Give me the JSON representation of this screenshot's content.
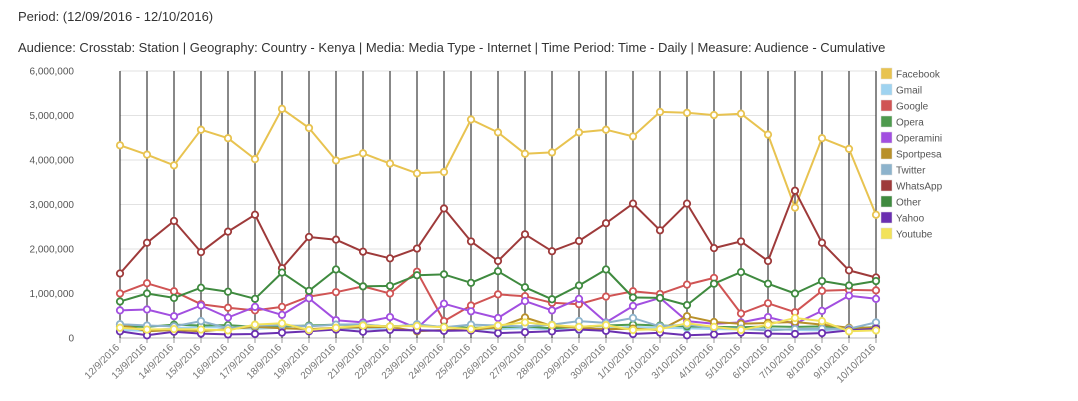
{
  "header": {
    "period": "Period: (12/09/2016 - 12/10/2016)",
    "audience": "Audience: Crosstab: Station | Geography: Country - Kenya | Media: Media Type - Internet | Time Period: Time - Daily | Measure: Audience - Cumulative"
  },
  "chart_data": {
    "type": "line",
    "title": "",
    "xlabel": "",
    "ylabel": "",
    "ylim": [
      0,
      6000000
    ],
    "yticks": [
      0,
      1000000,
      2000000,
      3000000,
      4000000,
      5000000,
      6000000
    ],
    "ytick_labels": [
      "0",
      "1,000,000",
      "2,000,000",
      "3,000,000",
      "4,000,000",
      "5,000,000",
      "6,000,000"
    ],
    "grid": true,
    "legend_position": "right",
    "categories": [
      "12/9/2016",
      "13/9/2016",
      "14/9/2016",
      "15/9/2016",
      "16/9/2016",
      "17/9/2016",
      "18/9/2016",
      "19/9/2016",
      "20/9/2016",
      "21/9/2016",
      "22/9/2016",
      "23/9/2016",
      "24/9/2016",
      "25/9/2016",
      "26/9/2016",
      "27/9/2016",
      "28/9/2016",
      "29/9/2016",
      "30/9/2016",
      "1/10/2016",
      "2/10/2016",
      "3/10/2016",
      "4/10/2016",
      "5/10/2016",
      "6/10/2016",
      "7/10/2016",
      "8/10/2016",
      "9/10/2016",
      "10/10/2016"
    ],
    "series": [
      {
        "name": "Facebook",
        "color": "#e8c350",
        "values": [
          4330000,
          4120000,
          3880000,
          4680000,
          4490000,
          4020000,
          5150000,
          4720000,
          3990000,
          4150000,
          3920000,
          3700000,
          3730000,
          4910000,
          4620000,
          4140000,
          4170000,
          4620000,
          4680000,
          4530000,
          5080000,
          5060000,
          5010000,
          5040000,
          4570000,
          2930000,
          4490000,
          4250000,
          2770000
        ]
      },
      {
        "name": "Gmail",
        "color": "#9fd3f0",
        "values": [
          180000,
          160000,
          220000,
          250000,
          230000,
          210000,
          230000,
          200000,
          210000,
          220000,
          190000,
          180000,
          170000,
          190000,
          200000,
          220000,
          190000,
          180000,
          220000,
          250000,
          230000,
          220000,
          200000,
          190000,
          210000,
          180000,
          170000,
          210000,
          250000
        ]
      },
      {
        "name": "Google",
        "color": "#d05454",
        "values": [
          1000000,
          1230000,
          1050000,
          760000,
          680000,
          620000,
          700000,
          930000,
          1030000,
          1160000,
          1000000,
          1490000,
          380000,
          730000,
          980000,
          940000,
          790000,
          760000,
          930000,
          1050000,
          990000,
          1200000,
          1350000,
          550000,
          780000,
          580000,
          1060000,
          1080000,
          1070000
        ]
      },
      {
        "name": "Opera",
        "color": "#4e9a4e",
        "values": [
          260000,
          250000,
          300000,
          280000,
          290000,
          250000,
          260000,
          280000,
          300000,
          290000,
          260000,
          280000,
          250000,
          230000,
          240000,
          260000,
          220000,
          250000,
          280000,
          300000,
          280000,
          260000,
          250000,
          240000,
          260000,
          250000,
          260000,
          220000,
          240000
        ]
      },
      {
        "name": "Operamini",
        "color": "#a24fe0",
        "values": [
          620000,
          640000,
          490000,
          730000,
          460000,
          700000,
          520000,
          890000,
          400000,
          350000,
          470000,
          220000,
          770000,
          600000,
          450000,
          830000,
          620000,
          880000,
          350000,
          720000,
          900000,
          380000,
          320000,
          350000,
          470000,
          320000,
          610000,
          950000,
          880000
        ]
      },
      {
        "name": "Sportpesa",
        "color": "#b8902a",
        "values": [
          300000,
          150000,
          180000,
          150000,
          200000,
          250000,
          220000,
          200000,
          230000,
          240000,
          250000,
          150000,
          180000,
          180000,
          240000,
          460000,
          270000,
          230000,
          200000,
          210000,
          180000,
          490000,
          360000,
          320000,
          340000,
          360000,
          300000,
          230000,
          230000
        ]
      },
      {
        "name": "Twitter",
        "color": "#8db3cc",
        "values": [
          310000,
          280000,
          260000,
          380000,
          220000,
          280000,
          290000,
          260000,
          300000,
          310000,
          250000,
          310000,
          240000,
          300000,
          280000,
          260000,
          300000,
          380000,
          340000,
          450000,
          260000,
          300000,
          230000,
          210000,
          170000,
          200000,
          210000,
          210000,
          350000
        ]
      },
      {
        "name": "WhatsApp",
        "color": "#9e3a3a",
        "values": [
          1450000,
          2140000,
          2630000,
          1930000,
          2390000,
          2770000,
          1570000,
          2270000,
          2210000,
          1940000,
          1790000,
          2010000,
          2910000,
          2170000,
          1730000,
          2330000,
          1950000,
          2180000,
          2580000,
          3020000,
          2420000,
          3020000,
          2020000,
          2170000,
          1730000,
          3310000,
          2140000,
          1520000,
          1360000
        ]
      },
      {
        "name": "Other",
        "color": "#3f8a3f",
        "values": [
          820000,
          1000000,
          900000,
          1130000,
          1040000,
          880000,
          1470000,
          1060000,
          1540000,
          1160000,
          1170000,
          1410000,
          1430000,
          1240000,
          1500000,
          1140000,
          870000,
          1180000,
          1540000,
          910000,
          900000,
          740000,
          1220000,
          1480000,
          1220000,
          1000000,
          1280000,
          1180000,
          1280000
        ]
      },
      {
        "name": "Yahoo",
        "color": "#6a2fb0",
        "values": [
          150000,
          60000,
          140000,
          100000,
          80000,
          90000,
          120000,
          150000,
          190000,
          140000,
          180000,
          170000,
          160000,
          170000,
          110000,
          130000,
          150000,
          190000,
          160000,
          90000,
          120000,
          60000,
          80000,
          120000,
          100000,
          90000,
          110000,
          170000,
          210000
        ]
      },
      {
        "name": "Youtube",
        "color": "#f2e25a",
        "values": [
          230000,
          190000,
          200000,
          190000,
          170000,
          300000,
          330000,
          180000,
          230000,
          280000,
          260000,
          270000,
          240000,
          200000,
          280000,
          350000,
          290000,
          250000,
          290000,
          180000,
          200000,
          330000,
          250000,
          180000,
          300000,
          450000,
          380000,
          150000,
          170000
        ]
      }
    ]
  }
}
